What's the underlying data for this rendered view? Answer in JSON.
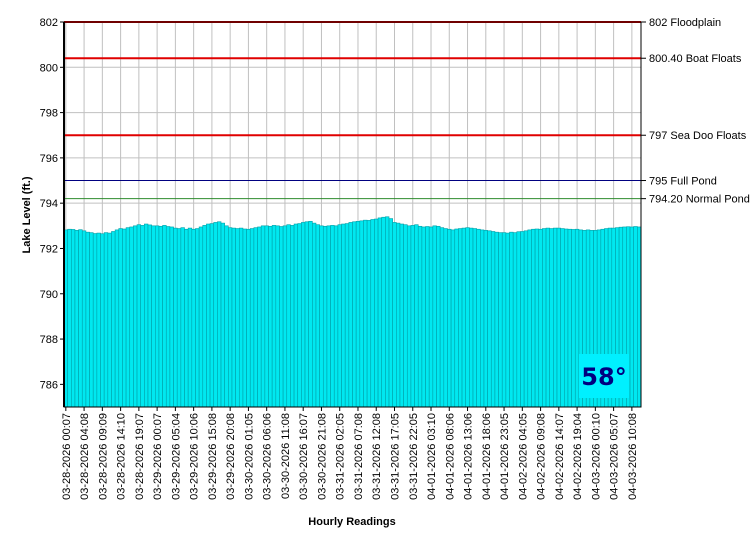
{
  "chart_data": {
    "type": "bar",
    "y_label": "Lake Level (ft.)",
    "x_label": "Hourly Readings",
    "annotation": "58°",
    "color": "#00e8f0",
    "grid": true,
    "ylim": [
      785,
      802
    ],
    "yticks": [
      786,
      788,
      790,
      792,
      794,
      796,
      798,
      800,
      802
    ],
    "reference_lines": [
      {
        "value": 802,
        "label": "802 Floodplain",
        "color": "#e00000"
      },
      {
        "value": 800.4,
        "label": "800.40 Boat Floats",
        "color": "#e00000"
      },
      {
        "value": 797,
        "label": "797 Sea Doo Floats",
        "color": "#e00000"
      },
      {
        "value": 795,
        "label": "795 Full Pond",
        "color": "#000080"
      },
      {
        "value": 794.2,
        "label": "794.20 Normal Pond",
        "color": "#2e8b2e"
      }
    ],
    "categories": [
      "03-28-2026 00:07",
      null,
      null,
      null,
      null,
      "03-28-2026 04:08",
      null,
      null,
      null,
      null,
      "03-28-2026 09:09",
      null,
      null,
      null,
      null,
      "03-28-2026 14:10",
      null,
      null,
      null,
      null,
      "03-28-2026 19:07",
      null,
      null,
      null,
      null,
      "03-29-2026 00:07",
      null,
      null,
      null,
      null,
      "03-29-2026 05:04",
      null,
      null,
      null,
      null,
      "03-29-2026 10:06",
      null,
      null,
      null,
      null,
      "03-29-2026 15:08",
      null,
      null,
      null,
      null,
      "03-29-2026 20:08",
      null,
      null,
      null,
      null,
      "03-30-2026 01:05",
      null,
      null,
      null,
      null,
      "03-30-2026 06:06",
      null,
      null,
      null,
      null,
      "03-30-2026 11:08",
      null,
      null,
      null,
      null,
      "03-30-2026 16:07",
      null,
      null,
      null,
      null,
      "03-30-2026 21:08",
      null,
      null,
      null,
      null,
      "03-31-2026 02:05",
      null,
      null,
      null,
      null,
      "03-31-2026 07:08",
      null,
      null,
      null,
      null,
      "03-31-2026 12:08",
      null,
      null,
      null,
      null,
      "03-31-2026 17:05",
      null,
      null,
      null,
      null,
      "03-31-2026 22:05",
      null,
      null,
      null,
      null,
      "04-01-2026 03:10",
      null,
      null,
      null,
      null,
      "04-01-2026 08:06",
      null,
      null,
      null,
      null,
      "04-01-2026 13:06",
      null,
      null,
      null,
      null,
      "04-01-2026 18:06",
      null,
      null,
      null,
      null,
      "04-01-2026 23:05",
      null,
      null,
      null,
      null,
      "04-02-2026 04:05",
      null,
      null,
      null,
      null,
      "04-02-2026 09:08",
      null,
      null,
      null,
      null,
      "04-02-2026 14:07",
      null,
      null,
      null,
      null,
      "04-02-2026 19:04",
      null,
      null,
      null,
      null,
      "04-03-2026 00:10",
      null,
      null,
      null,
      null,
      "04-03-2026 05:07",
      null,
      null,
      null,
      null,
      "04-03-2026 10:08",
      null,
      null
    ],
    "values": [
      792.82,
      792.85,
      792.84,
      792.8,
      792.83,
      792.78,
      792.72,
      792.7,
      792.66,
      792.68,
      792.65,
      792.7,
      792.68,
      792.75,
      792.82,
      792.88,
      792.86,
      792.92,
      792.95,
      793.0,
      793.05,
      793.02,
      793.08,
      793.04,
      793.0,
      793.0,
      792.98,
      793.02,
      792.97,
      792.95,
      792.9,
      792.88,
      792.92,
      792.85,
      792.9,
      792.85,
      792.88,
      792.95,
      793.02,
      793.08,
      793.1,
      793.15,
      793.18,
      793.12,
      793.0,
      792.92,
      792.9,
      792.88,
      792.9,
      792.86,
      792.85,
      792.88,
      792.92,
      792.95,
      793.0,
      793.0,
      792.98,
      793.02,
      793.0,
      792.97,
      793.0,
      793.05,
      793.02,
      793.08,
      793.1,
      793.15,
      793.18,
      793.2,
      793.12,
      793.05,
      793.0,
      792.98,
      793.0,
      793.02,
      793.0,
      793.05,
      793.08,
      793.1,
      793.15,
      793.18,
      793.2,
      793.22,
      793.25,
      793.24,
      793.28,
      793.3,
      793.35,
      793.38,
      793.4,
      793.32,
      793.15,
      793.12,
      793.08,
      793.05,
      793.0,
      793.02,
      793.05,
      792.98,
      792.95,
      792.97,
      792.95,
      793.0,
      792.98,
      792.92,
      792.88,
      792.85,
      792.82,
      792.86,
      792.88,
      792.9,
      792.92,
      792.9,
      792.88,
      792.85,
      792.82,
      792.8,
      792.78,
      792.75,
      792.72,
      792.7,
      792.7,
      792.68,
      792.72,
      792.7,
      792.74,
      792.75,
      792.78,
      792.82,
      792.85,
      792.86,
      792.85,
      792.88,
      792.9,
      792.88,
      792.9,
      792.9,
      792.88,
      792.86,
      792.85,
      792.84,
      792.85,
      792.82,
      792.8,
      792.82,
      792.8,
      792.8,
      792.82,
      792.85,
      792.88,
      792.9,
      792.9,
      792.92,
      792.94,
      792.95,
      792.96,
      792.95,
      792.97,
      792.95
    ]
  }
}
